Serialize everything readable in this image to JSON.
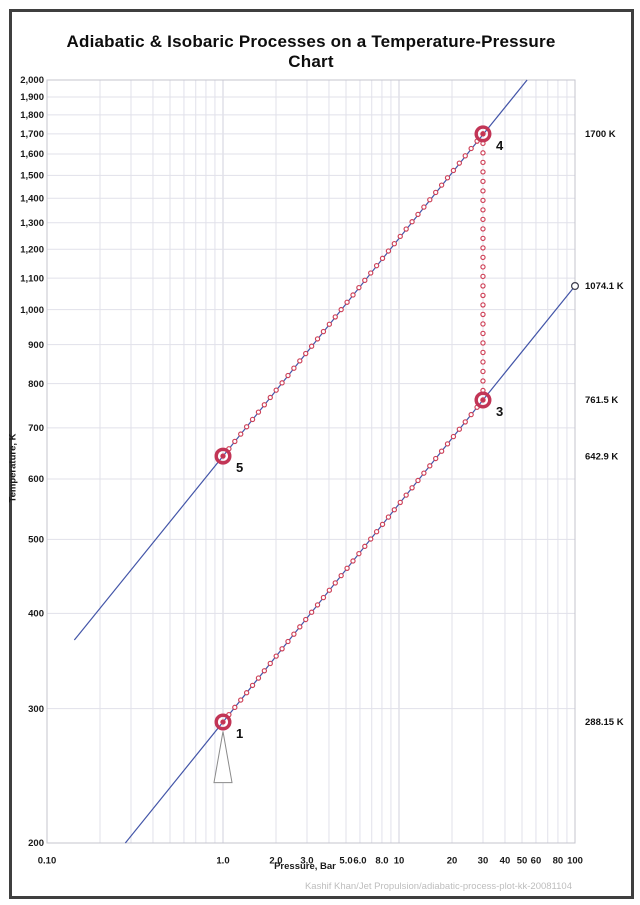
{
  "figure": {
    "footer": "Kashif Khan/Jet Propulsion/adiabatic-process-plot-kk-20081104"
  },
  "chart_data": {
    "type": "line",
    "title": "Adiabatic & Isobaric Processes on a Temperature-Pressure Chart",
    "xlabel": "Pressure, Bar",
    "ylabel": "Temperature, K",
    "x_scale": "log",
    "y_scale": "log",
    "xlim": [
      0.1,
      100
    ],
    "ylim": [
      200,
      2000
    ],
    "grid": "on",
    "legend": "none",
    "x_ticks": [
      {
        "v": 0.1,
        "label": "0.10"
      },
      {
        "v": 1.0,
        "label": "1.0"
      },
      {
        "v": 2.0,
        "label": "2.0"
      },
      {
        "v": 3.0,
        "label": "3.0"
      },
      {
        "v": 5.0,
        "label": "5.0"
      },
      {
        "v": 6.0,
        "label": "6.0"
      },
      {
        "v": 8.0,
        "label": "8.0"
      },
      {
        "v": 10,
        "label": "10"
      },
      {
        "v": 20,
        "label": "20"
      },
      {
        "v": 30,
        "label": "30"
      },
      {
        "v": 40,
        "label": "40"
      },
      {
        "v": 50,
        "label": "50"
      },
      {
        "v": 60,
        "label": "60"
      },
      {
        "v": 80,
        "label": "80"
      },
      {
        "v": 100,
        "label": "100"
      }
    ],
    "y_ticks": [
      {
        "v": 200,
        "label": "200"
      },
      {
        "v": 300,
        "label": "300"
      },
      {
        "v": 400,
        "label": "400"
      },
      {
        "v": 500,
        "label": "500"
      },
      {
        "v": 600,
        "label": "600"
      },
      {
        "v": 700,
        "label": "700"
      },
      {
        "v": 800,
        "label": "800"
      },
      {
        "v": 900,
        "label": "900"
      },
      {
        "v": 1000,
        "label": "1,000"
      },
      {
        "v": 1100,
        "label": "1,100"
      },
      {
        "v": 1200,
        "label": "1,200"
      },
      {
        "v": 1300,
        "label": "1,300"
      },
      {
        "v": 1400,
        "label": "1,400"
      },
      {
        "v": 1500,
        "label": "1,500"
      },
      {
        "v": 1600,
        "label": "1,600"
      },
      {
        "v": 1700,
        "label": "1,700"
      },
      {
        "v": 1800,
        "label": "1,800"
      },
      {
        "v": 1900,
        "label": "1,900"
      },
      {
        "v": 2000,
        "label": "2,000"
      }
    ],
    "isentrope_lines": [
      {
        "name": "isentrope-through-points-1-3",
        "from_P": 0.2787,
        "from_T": 200,
        "to_P": 100,
        "to_T": 1074.1,
        "end_marker": "open-circle"
      },
      {
        "name": "isentrope-through-points-5-4",
        "from_P": 0.143,
        "from_T": 369,
        "to_P": 53.43,
        "to_T": 2000,
        "end_marker": "none"
      }
    ],
    "processes": [
      {
        "name": "adiabatic-compression-1-to-3",
        "from_P": 1.0,
        "from_T": 288.15,
        "to_P": 30,
        "to_T": 761.5,
        "dots": 45
      },
      {
        "name": "isobaric-heating-3-to-4",
        "from_P": 30,
        "from_T": 761.5,
        "to_P": 30,
        "to_T": 1700,
        "dots": 29
      },
      {
        "name": "adiabatic-expansion-4-to-5",
        "from_P": 30,
        "from_T": 1700,
        "to_P": 1.0,
        "to_T": 642.9,
        "dots": 45
      }
    ],
    "state_points": [
      {
        "label": "1",
        "P": 1.0,
        "T": 288.15
      },
      {
        "label": "3",
        "P": 30,
        "T": 761.5
      },
      {
        "label": "4",
        "P": 30,
        "T": 1700
      },
      {
        "label": "5",
        "P": 1.0,
        "T": 642.9
      }
    ],
    "annotations": [
      {
        "text": "1700 K",
        "T": 1700
      },
      {
        "text": "1074.1 K",
        "T": 1074.1
      },
      {
        "text": "761.5 K",
        "T": 761.5
      },
      {
        "text": "642.9 K",
        "T": 642.9
      },
      {
        "text": "288.15 K",
        "T": 288.15
      }
    ],
    "nozzle_symbol": {
      "P": 1.0,
      "apex_T": 280,
      "base_T": 240
    },
    "colors": {
      "process_dots": "#CE4158",
      "state_marker": "#C23556",
      "isentrope_line": "#4355A8",
      "grid_minor": "#E1E1EA",
      "grid_major": "#D2D2DE",
      "plot_border": "#C4C4CE",
      "tick_text": "#1a1a1a",
      "annotation_text": "#111111",
      "point_label_text": "#111111",
      "nozzle_outline": "#8A8A8A",
      "end_circle_outline": "#3A3A4A"
    }
  }
}
